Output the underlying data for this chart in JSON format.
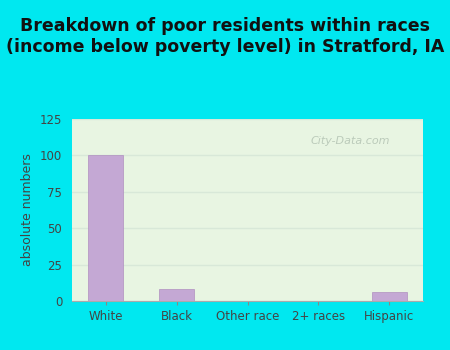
{
  "title": "Breakdown of poor residents within races\n(income below poverty level) in Stratford, IA",
  "ylabel": "absolute numbers",
  "categories": [
    "White",
    "Black",
    "Other race",
    "2+ races",
    "Hispanic"
  ],
  "values": [
    100,
    8,
    0,
    0,
    6
  ],
  "bar_color": "#c4a8d4",
  "bar_edge_color": "#b090c0",
  "ylim": [
    0,
    125
  ],
  "yticks": [
    0,
    25,
    50,
    75,
    100,
    125
  ],
  "plot_bg_color": "#e8f5e2",
  "outer_bg_color": "#00e8f0",
  "title_fontsize": 12.5,
  "axis_label_fontsize": 9,
  "tick_fontsize": 8.5,
  "watermark_text": "City-Data.com",
  "grid_color": "#d8e8d8",
  "title_color": "#111111"
}
